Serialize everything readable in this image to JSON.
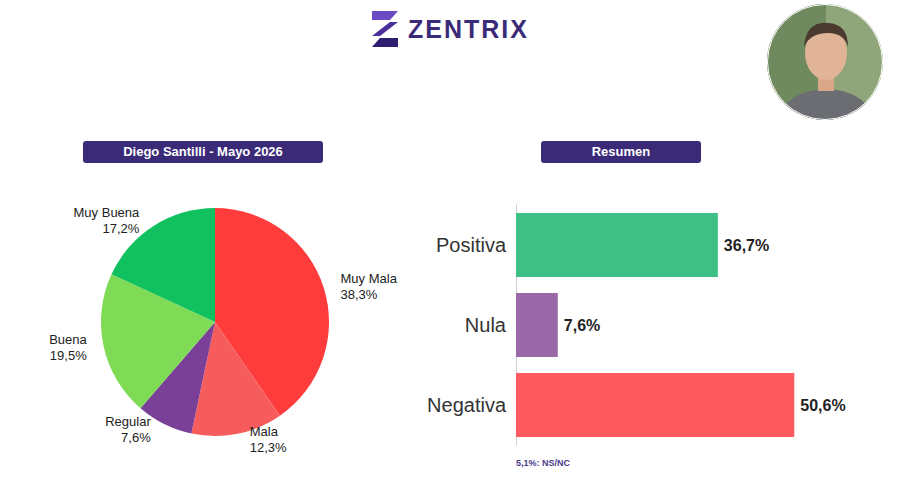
{
  "header": {
    "brand": "ZENTRIX"
  },
  "chart_data": [
    {
      "type": "pie",
      "title": "Diego Santilli - Mayo 2026",
      "categories": [
        "Muy Mala",
        "Mala",
        "Regular",
        "Buena",
        "Muy Buena"
      ],
      "values": [
        38.3,
        12.3,
        7.6,
        19.5,
        17.2
      ],
      "value_labels": [
        "38,3%",
        "12,3%",
        "7,6%",
        "19,5%",
        "17,2%"
      ],
      "colors": [
        "#fe3c3c",
        "#f75c5c",
        "#7a3f96",
        "#7fda55",
        "#11c05e"
      ],
      "data_labels": true
    },
    {
      "type": "bar",
      "title": "Resumen",
      "orientation": "horizontal",
      "categories": [
        "Positiva",
        "Nula",
        "Negativa"
      ],
      "values": [
        36.7,
        7.6,
        50.6
      ],
      "value_labels": [
        "36,7%",
        "7,6%",
        "50,6%"
      ],
      "colors": [
        "#3dbf86",
        "#9a6aa8",
        "#ff5a5f"
      ],
      "xlim": [
        0,
        60
      ],
      "tick_labels": "y",
      "data_labels": true,
      "annotations": [
        "5,1%: NS/NC"
      ]
    }
  ]
}
